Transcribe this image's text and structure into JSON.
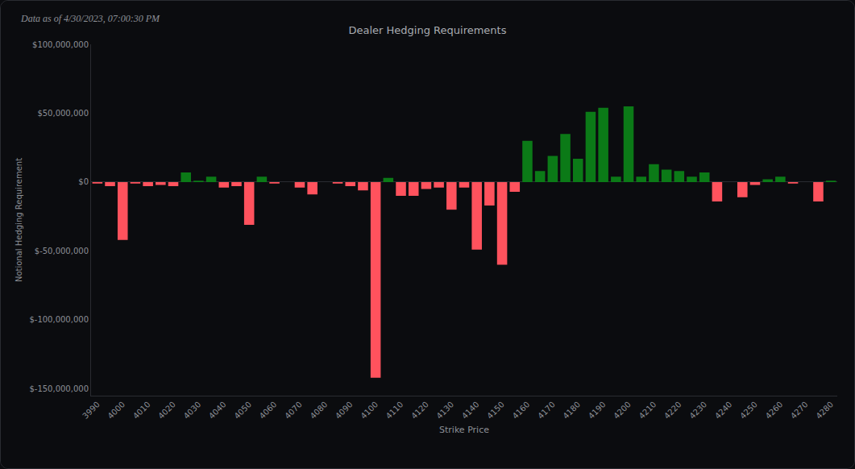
{
  "chart_data": {
    "type": "bar",
    "title": "Dealer Hedging Requirements",
    "subtitle": "Data as of 4/30/2023, 07:00:30 PM",
    "x_label": "Strike Price",
    "y_label": "Notional Hedging Requirement",
    "x": [
      3990,
      3995,
      4000,
      4005,
      4010,
      4015,
      4020,
      4025,
      4030,
      4035,
      4040,
      4045,
      4050,
      4055,
      4060,
      4065,
      4070,
      4075,
      4080,
      4085,
      4090,
      4095,
      4100,
      4105,
      4110,
      4115,
      4120,
      4125,
      4130,
      4135,
      4140,
      4145,
      4150,
      4155,
      4160,
      4165,
      4170,
      4175,
      4180,
      4185,
      4190,
      4195,
      4200,
      4205,
      4210,
      4215,
      4220,
      4225,
      4230,
      4235,
      4240,
      4245,
      4250,
      4255,
      4260,
      4265,
      4270,
      4275,
      4280
    ],
    "values": [
      -1000000,
      -3000000,
      -42000000,
      -1000000,
      -3000000,
      -2000000,
      -3000000,
      7000000,
      1000000,
      4000000,
      -4000000,
      -3000000,
      -31000000,
      4000000,
      -1000000,
      0,
      -4000000,
      -9000000,
      0,
      -1000000,
      -3000000,
      -6000000,
      -142000000,
      3000000,
      -10000000,
      -10000000,
      -5000000,
      -4000000,
      -20000000,
      -4000000,
      -49000000,
      -17000000,
      -60000000,
      -7000000,
      30000000,
      8000000,
      19000000,
      35000000,
      17000000,
      51000000,
      54000000,
      4000000,
      55000000,
      4000000,
      13000000,
      9000000,
      8000000,
      4000000,
      7000000,
      -14000000,
      0,
      -11000000,
      -2000000,
      2000000,
      4000000,
      -1000000,
      0,
      -14000000,
      1000000
    ],
    "colors": [
      "#ff525d",
      "#ff525d",
      "#ff525d",
      "#ff525d",
      "#ff525d",
      "#ff525d",
      "#ff525d",
      "#0b7a17",
      "#0b7a17",
      "#0b7a17",
      "#ff525d",
      "#ff525d",
      "#ff525d",
      "#0b7a17",
      "#ff525d",
      "#ff525d",
      "#ff525d",
      "#ff525d",
      "#ff525d",
      "#ff525d",
      "#ff525d",
      "#ff525d",
      "#ff525d",
      "#0b7a17",
      "#ff525d",
      "#ff525d",
      "#ff525d",
      "#ff525d",
      "#ff525d",
      "#ff525d",
      "#ff525d",
      "#ff525d",
      "#ff525d",
      "#ff525d",
      "#0b7a17",
      "#0b7a17",
      "#0b7a17",
      "#0b7a17",
      "#0b7a17",
      "#0b7a17",
      "#0b7a17",
      "#0b7a17",
      "#0b7a17",
      "#0b7a17",
      "#0b7a17",
      "#0b7a17",
      "#0b7a17",
      "#0b7a17",
      "#0b7a17",
      "#ff525d",
      "#0b7a17",
      "#ff525d",
      "#ff525d",
      "#0b7a17",
      "#0b7a17",
      "#ff525d",
      "#0b7a17",
      "#ff525d",
      "#0b7a17"
    ],
    "xlim": [
      3987.5,
      4282.5
    ],
    "xticks": [
      3990,
      4000,
      4010,
      4020,
      4030,
      4040,
      4050,
      4060,
      4070,
      4080,
      4090,
      4100,
      4110,
      4120,
      4130,
      4140,
      4150,
      4160,
      4170,
      4180,
      4190,
      4200,
      4210,
      4220,
      4230,
      4240,
      4250,
      4260,
      4270,
      4280
    ],
    "ylim": [
      -155000000,
      100000000
    ],
    "yticks": [
      {
        "value": 100000000,
        "label": "$100,000,000"
      },
      {
        "value": 50000000,
        "label": "$50,000,000"
      },
      {
        "value": 0,
        "label": "$0"
      },
      {
        "value": -50000000,
        "label": "$-50,000,000"
      },
      {
        "value": -100000000,
        "label": "$-100,000,000"
      },
      {
        "value": -150000000,
        "label": "$-150,000,000"
      }
    ],
    "grid": false
  }
}
